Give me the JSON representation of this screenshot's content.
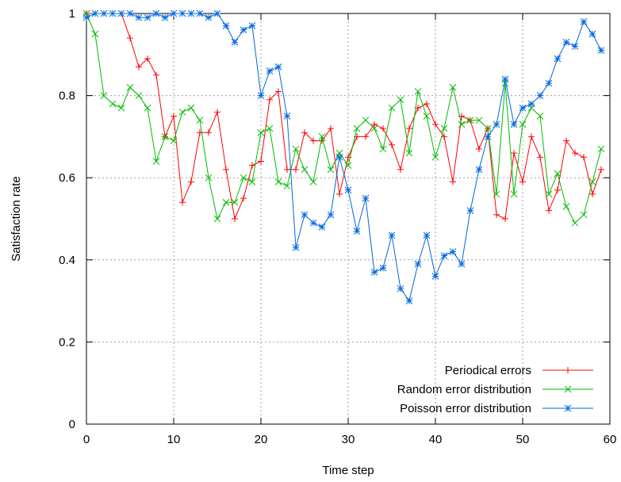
{
  "chart_data": {
    "type": "line",
    "title": "",
    "xlabel": "Time step",
    "ylabel": "Satisfaction rate",
    "xlim": [
      0,
      60
    ],
    "ylim": [
      0,
      1
    ],
    "xticks": [
      "0",
      "10",
      "20",
      "30",
      "40",
      "50",
      "60"
    ],
    "yticks": [
      "0",
      "0.2",
      "0.4",
      "0.6",
      "0.8",
      "1"
    ],
    "grid": true,
    "legend_position": "bottom-right",
    "x": [
      0,
      1,
      2,
      3,
      4,
      5,
      6,
      7,
      8,
      9,
      10,
      11,
      12,
      13,
      14,
      15,
      16,
      17,
      18,
      19,
      20,
      21,
      22,
      23,
      24,
      25,
      26,
      27,
      28,
      29,
      30,
      31,
      32,
      33,
      34,
      35,
      36,
      37,
      38,
      39,
      40,
      41,
      42,
      43,
      44,
      45,
      46,
      47,
      48,
      49,
      50,
      51,
      52,
      53,
      54,
      55,
      56,
      57,
      58,
      59
    ],
    "series": [
      {
        "name": "Periodical errors",
        "color": "#ff0000",
        "marker": "plus",
        "values": [
          1.0,
          1.0,
          1.0,
          1.0,
          1.0,
          0.94,
          0.87,
          0.89,
          0.85,
          0.7,
          0.75,
          0.54,
          0.59,
          0.71,
          0.71,
          0.76,
          0.62,
          0.5,
          0.55,
          0.63,
          0.64,
          0.79,
          0.81,
          0.62,
          0.62,
          0.71,
          0.69,
          0.69,
          0.72,
          0.56,
          0.65,
          0.7,
          0.7,
          0.73,
          0.72,
          0.68,
          0.62,
          0.72,
          0.77,
          0.78,
          0.73,
          0.7,
          0.59,
          0.75,
          0.74,
          0.67,
          0.72,
          0.51,
          0.5,
          0.66,
          0.59,
          0.7,
          0.65,
          0.52,
          0.57,
          0.69,
          0.66,
          0.65,
          0.56,
          0.62
        ]
      },
      {
        "name": "Random error distribution",
        "color": "#00bb00",
        "marker": "cross",
        "values": [
          1.0,
          0.95,
          0.8,
          0.78,
          0.77,
          0.82,
          0.8,
          0.77,
          0.64,
          0.7,
          0.69,
          0.76,
          0.77,
          0.74,
          0.6,
          0.5,
          0.54,
          0.54,
          0.6,
          0.59,
          0.71,
          0.72,
          0.59,
          0.58,
          0.67,
          0.62,
          0.59,
          0.7,
          0.62,
          0.66,
          0.63,
          0.72,
          0.74,
          0.72,
          0.67,
          0.77,
          0.79,
          0.66,
          0.81,
          0.75,
          0.65,
          0.72,
          0.82,
          0.73,
          0.74,
          0.74,
          0.72,
          0.56,
          0.83,
          0.56,
          0.73,
          0.77,
          0.75,
          0.56,
          0.61,
          0.53,
          0.49,
          0.51,
          0.59,
          0.67
        ]
      },
      {
        "name": "Poisson error distribution",
        "color": "#0066dd",
        "marker": "star",
        "values": [
          0.99,
          1.0,
          1.0,
          1.0,
          1.0,
          1.0,
          0.99,
          0.99,
          1.0,
          0.99,
          1.0,
          1.0,
          1.0,
          1.0,
          0.99,
          1.0,
          0.97,
          0.93,
          0.96,
          0.97,
          0.8,
          0.86,
          0.87,
          0.75,
          0.43,
          0.51,
          0.49,
          0.48,
          0.51,
          0.65,
          0.57,
          0.47,
          0.55,
          0.37,
          0.38,
          0.46,
          0.33,
          0.3,
          0.39,
          0.46,
          0.36,
          0.41,
          0.42,
          0.39,
          0.52,
          0.62,
          0.7,
          0.73,
          0.84,
          0.73,
          0.77,
          0.78,
          0.8,
          0.83,
          0.89,
          0.93,
          0.92,
          0.98,
          0.95,
          0.91
        ]
      }
    ]
  }
}
